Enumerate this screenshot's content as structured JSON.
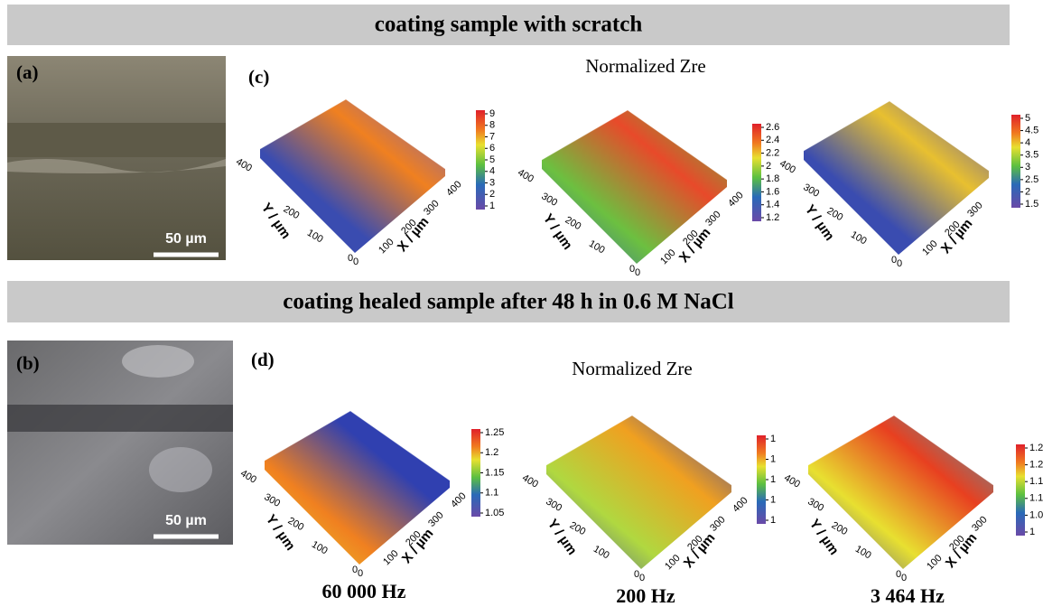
{
  "banners": [
    "coating sample with scratch",
    "coating healed sample after 48 h in 0.6 M NaCl"
  ],
  "photos": [
    {
      "label": "(a)",
      "scale": "50 µm"
    },
    {
      "label": "(b)",
      "scale": "50 µm"
    }
  ],
  "maps": [
    {
      "label": "(c)",
      "title": "Normalized Zre",
      "plots": [
        {
          "yticks": [
            "400",
            "200",
            "100"
          ],
          "xticks": [
            "100",
            "200",
            "300",
            "400"
          ],
          "origin": [
            "0",
            "0"
          ],
          "ytitle": "Y / µm",
          "xtitle": "X / µm",
          "colorbar": [
            "9",
            "8",
            "7",
            "6",
            "5",
            "4",
            "3",
            "2",
            "1"
          ]
        },
        {
          "yticks": [
            "400",
            "300",
            "200",
            "100"
          ],
          "xticks": [
            "100",
            "200",
            "300",
            "400"
          ],
          "origin": [
            "0",
            "0"
          ],
          "ytitle": "Y / µm",
          "xtitle": "X / µm",
          "colorbar": [
            "2.6",
            "2.4",
            "2.2",
            "2",
            "1.8",
            "1.6",
            "1.4",
            "1.2"
          ]
        },
        {
          "yticks": [
            "400",
            "300",
            "200",
            "100"
          ],
          "xticks": [
            "100",
            "200",
            "300"
          ],
          "origin": [
            "0",
            "0"
          ],
          "ytitle": "Y / µm",
          "xtitle": "X / µm",
          "colorbar": [
            "5",
            "4.5",
            "4",
            "3.5",
            "3",
            "2.5",
            "2",
            "1.5"
          ]
        }
      ]
    },
    {
      "label": "(d)",
      "title": "Normalized Zre",
      "plots": [
        {
          "yticks": [
            "400",
            "300",
            "200",
            "100"
          ],
          "xticks": [
            "100",
            "200",
            "300",
            "400"
          ],
          "origin": [
            "0",
            "0"
          ],
          "ytitle": "Y / µm",
          "xtitle": "X / µm",
          "colorbar": [
            "1.25",
            "1.2",
            "1.15",
            "1.1",
            "1.05"
          ],
          "frequency": "60 000 Hz"
        },
        {
          "yticks": [
            "400",
            "300",
            "200",
            "100"
          ],
          "xticks": [
            "100",
            "200",
            "300",
            "400"
          ],
          "origin": [
            "0",
            "0"
          ],
          "ytitle": "Y / µm",
          "xtitle": "X / µm",
          "colorbar": [
            "1",
            "1",
            "1",
            "1",
            "1"
          ],
          "frequency": "200 Hz"
        },
        {
          "yticks": [
            "400",
            "300",
            "200",
            "100"
          ],
          "xticks": [
            "100",
            "200",
            "300"
          ],
          "origin": [
            "0",
            "0"
          ],
          "ytitle": "Y / µm",
          "xtitle": "X / µm",
          "colorbar": [
            "1.2",
            "1.2",
            "1.1",
            "1.1",
            "1.0",
            "1"
          ],
          "frequency": "3 464 Hz"
        }
      ]
    }
  ]
}
